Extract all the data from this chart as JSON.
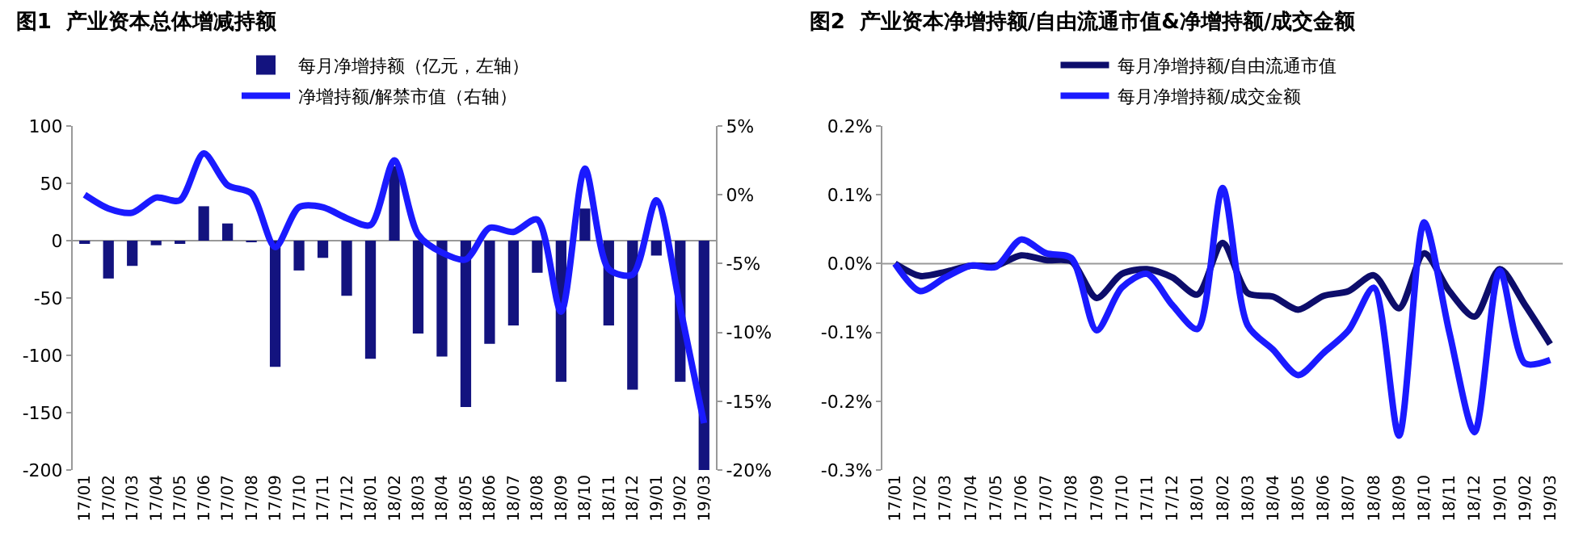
{
  "chart_data": [
    {
      "type": "bar",
      "title": "图1  产业资本总体增减持额",
      "categories": [
        "17/01",
        "17/02",
        "17/03",
        "17/04",
        "17/05",
        "17/06",
        "17/07",
        "17/08",
        "17/09",
        "17/10",
        "17/11",
        "17/12",
        "18/01",
        "18/02",
        "18/03",
        "18/04",
        "18/05",
        "18/06",
        "18/07",
        "18/08",
        "18/09",
        "18/10",
        "18/11",
        "18/12",
        "19/01",
        "19/02",
        "19/03"
      ],
      "series": [
        {
          "name": "每月净增持额（亿元，左轴）",
          "color": "#13137f",
          "values": [
            -2,
            -33,
            -22,
            -4,
            -2,
            30,
            15,
            -1,
            -110,
            -26,
            -15,
            -48,
            -103,
            65,
            -81,
            -101,
            -145,
            -90,
            -74,
            -28,
            -123,
            28,
            -74,
            -130,
            -13,
            -123,
            -200
          ]
        },
        {
          "name": "净增持额/解禁市值（右轴）",
          "type": "line",
          "axis": "y2",
          "color": "#1a1aff",
          "values": [
            0,
            -1.0,
            -1.3,
            -0.2,
            -0.4,
            3.0,
            0.7,
            0.1,
            -3.8,
            -0.9,
            -0.9,
            -1.7,
            -2.2,
            2.5,
            -2.9,
            -4.2,
            -4.7,
            -2.4,
            -2.7,
            -1.8,
            -8.5,
            1.9,
            -5.4,
            -5.8,
            -0.4,
            -8.2,
            -16.6
          ]
        }
      ],
      "ylim": [
        -200,
        100
      ],
      "yticks": [
        -200,
        -150,
        -100,
        -50,
        0,
        50,
        100
      ],
      "y2lim": [
        -20,
        5
      ],
      "y2ticks": [
        {
          "value": -20,
          "label": "-20%"
        },
        {
          "value": -15,
          "label": "-15%"
        },
        {
          "value": -10,
          "label": "-10%"
        },
        {
          "value": -5,
          "label": "-5%"
        },
        {
          "value": 0,
          "label": "0%"
        },
        {
          "value": 5,
          "label": "5%"
        }
      ],
      "ref_lines": [
        {
          "axis": "y",
          "value": 0,
          "color": "#999999"
        }
      ],
      "grid": false,
      "legend": "top"
    },
    {
      "type": "line",
      "title": "图2  产业资本净增持额/自由流通市值&净增持额/成交金额",
      "categories": [
        "17/01",
        "17/02",
        "17/03",
        "17/04",
        "17/05",
        "17/06",
        "17/07",
        "17/08",
        "17/09",
        "17/10",
        "17/11",
        "17/12",
        "18/01",
        "18/02",
        "18/03",
        "18/04",
        "18/05",
        "18/06",
        "18/07",
        "18/08",
        "18/09",
        "18/10",
        "18/11",
        "18/12",
        "19/01",
        "19/02",
        "19/03"
      ],
      "series": [
        {
          "name": "每月净增持额/自由流通市值",
          "color": "#0d0d6b",
          "values": [
            0,
            -0.018,
            -0.012,
            -0.003,
            -0.003,
            0.012,
            0.005,
            0.003,
            -0.05,
            -0.015,
            -0.008,
            -0.02,
            -0.045,
            0.03,
            -0.043,
            -0.048,
            -0.067,
            -0.047,
            -0.04,
            -0.017,
            -0.065,
            0.015,
            -0.04,
            -0.077,
            -0.008,
            -0.06,
            -0.117
          ]
        },
        {
          "name": "每月净增持额/成交金额",
          "color": "#1a1aff",
          "values": [
            0,
            -0.04,
            -0.02,
            -0.003,
            -0.005,
            0.035,
            0.015,
            0.008,
            -0.097,
            -0.035,
            -0.015,
            -0.06,
            -0.095,
            0.11,
            -0.09,
            -0.125,
            -0.162,
            -0.13,
            -0.097,
            -0.035,
            -0.25,
            0.06,
            -0.1,
            -0.245,
            -0.01,
            -0.145,
            -0.14
          ]
        }
      ],
      "ylim": [
        -0.3,
        0.2
      ],
      "yticks": [
        {
          "value": -0.3,
          "label": "-0.3%"
        },
        {
          "value": -0.2,
          "label": "-0.2%"
        },
        {
          "value": -0.1,
          "label": "-0.1%"
        },
        {
          "value": 0,
          "label": "0.0%"
        },
        {
          "value": 0.1,
          "label": "0.1%"
        },
        {
          "value": 0.2,
          "label": "0.2%"
        }
      ],
      "ref_lines": [
        {
          "axis": "y",
          "value": 0,
          "color": "#999999"
        }
      ],
      "grid": false,
      "legend": "top"
    }
  ]
}
